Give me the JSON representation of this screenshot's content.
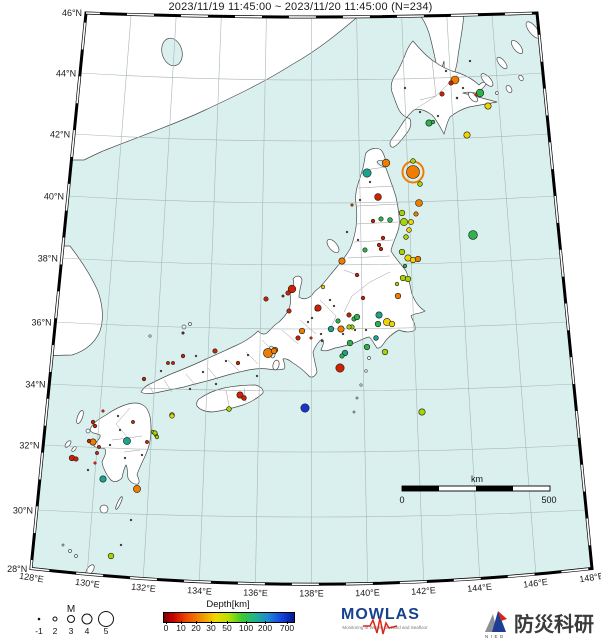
{
  "title": "2023/11/19 11:45:00 ~ 2023/11/20 11:45:00 (N=234)",
  "map": {
    "lat_labels": [
      "46°N",
      "44°N",
      "42°N",
      "40°N",
      "38°N",
      "36°N",
      "34°N",
      "32°N",
      "30°N",
      "28°N"
    ],
    "lon_labels": [
      "128°E",
      "130°E",
      "132°E",
      "134°E",
      "136°E",
      "138°E",
      "140°E",
      "142°E",
      "144°E",
      "146°E",
      "148°E"
    ],
    "scale_bar": {
      "unit": "km",
      "left": "0",
      "right": "500"
    },
    "events": [
      [
        455,
        80,
        4,
        "orange"
      ],
      [
        451,
        83,
        2.2,
        "red"
      ],
      [
        442,
        94,
        2.2,
        "red"
      ],
      [
        480,
        93,
        3.8,
        "green"
      ],
      [
        476,
        95,
        1.4,
        "red"
      ],
      [
        488,
        106,
        3.2,
        "yellow"
      ],
      [
        429,
        123,
        3.2,
        "green"
      ],
      [
        433,
        122,
        1.8,
        "green"
      ],
      [
        467,
        135,
        3.2,
        "yellow"
      ],
      [
        446,
        71,
        1,
        "tiny"
      ],
      [
        470,
        61,
        1,
        "tiny"
      ],
      [
        420,
        112,
        1,
        "tiny"
      ],
      [
        457,
        98,
        1.1,
        "tiny"
      ],
      [
        438,
        116,
        1,
        "tiny"
      ],
      [
        405,
        88,
        1,
        "tiny"
      ],
      [
        463,
        88,
        1,
        "tiny"
      ],
      [
        386,
        163,
        3.8,
        "orange"
      ],
      [
        367,
        173,
        4.2,
        "teal"
      ],
      [
        413,
        172,
        6.5,
        "orange",
        1
      ],
      [
        413,
        161,
        2.4,
        "ygreen"
      ],
      [
        420,
        184,
        2.4,
        "ygreen"
      ],
      [
        419,
        203,
        3.5,
        "orange"
      ],
      [
        378,
        197,
        3.4,
        "red"
      ],
      [
        373,
        221,
        1.8,
        "red"
      ],
      [
        381,
        219,
        2.2,
        "green"
      ],
      [
        390,
        220,
        2.4,
        "green"
      ],
      [
        402,
        213,
        2.8,
        "ygreen"
      ],
      [
        404,
        222,
        3.6,
        "ygreen"
      ],
      [
        411,
        222,
        2.6,
        "yellow"
      ],
      [
        409,
        230,
        2.4,
        "yellow"
      ],
      [
        383,
        238,
        1.8,
        "red"
      ],
      [
        406,
        237,
        2.4,
        "ygreen"
      ],
      [
        473,
        235,
        4.4,
        "green"
      ],
      [
        365,
        250,
        2.2,
        "green"
      ],
      [
        381,
        249,
        1.8,
        "red"
      ],
      [
        402,
        252,
        2.8,
        "ygreen"
      ],
      [
        408,
        258,
        3.2,
        "yellow"
      ],
      [
        413,
        260,
        2.8,
        "yellow"
      ],
      [
        418,
        259,
        2.8,
        "orange"
      ],
      [
        405,
        266,
        1.8,
        "green"
      ],
      [
        403,
        278,
        2.8,
        "ygreen"
      ],
      [
        408,
        279,
        2.8,
        "ygreen"
      ],
      [
        397,
        284,
        1.8,
        "ygreen"
      ],
      [
        416,
        214,
        2.2,
        "orange"
      ],
      [
        370,
        182,
        1,
        "tiny"
      ],
      [
        360,
        200,
        1,
        "tiny"
      ],
      [
        352,
        205,
        1.4,
        "red"
      ],
      [
        347,
        232,
        1,
        "tiny"
      ],
      [
        358,
        240,
        1,
        "tiny"
      ],
      [
        342,
        261,
        3.2,
        "orange"
      ],
      [
        357,
        275,
        1.8,
        "red"
      ],
      [
        379,
        245,
        1.8,
        "red"
      ],
      [
        292,
        289,
        3.8,
        "red"
      ],
      [
        288,
        293,
        2.2,
        "red"
      ],
      [
        266,
        299,
        2.2,
        "red"
      ],
      [
        289,
        311,
        2.2,
        "red"
      ],
      [
        323,
        287,
        1.8,
        "yellow"
      ],
      [
        317,
        309,
        2.2,
        "red"
      ],
      [
        363,
        298,
        1.8,
        "red"
      ],
      [
        331,
        329,
        2.8,
        "teal"
      ],
      [
        338,
        321,
        2.2,
        "green"
      ],
      [
        354,
        319,
        2.2,
        "green"
      ],
      [
        352,
        327,
        2.2,
        "ygreen"
      ],
      [
        311,
        338,
        1.4,
        "red"
      ],
      [
        321,
        334,
        1,
        "tiny"
      ],
      [
        334,
        306,
        1,
        "tiny"
      ],
      [
        308,
        322,
        1,
        "tiny"
      ],
      [
        398,
        296,
        2.8,
        "orange"
      ],
      [
        318,
        308,
        3.2,
        "red"
      ],
      [
        349,
        315,
        2.2,
        "red"
      ],
      [
        357,
        317,
        2.8,
        "green"
      ],
      [
        379,
        315,
        3.2,
        "teal"
      ],
      [
        378,
        324,
        2.8,
        "green"
      ],
      [
        387,
        322,
        3.6,
        "yellow"
      ],
      [
        392,
        324,
        2.8,
        "yellow"
      ],
      [
        341,
        329,
        3.2,
        "orange"
      ],
      [
        349,
        327,
        2.2,
        "ygreen"
      ],
      [
        302,
        331,
        2.8,
        "orange"
      ],
      [
        298,
        338,
        2.2,
        "red"
      ],
      [
        275,
        350,
        2.8,
        "orange"
      ],
      [
        350,
        343,
        2.8,
        "green"
      ],
      [
        367,
        347,
        2.8,
        "green"
      ],
      [
        345,
        353,
        2.8,
        "teal"
      ],
      [
        342,
        356,
        2.2,
        "green"
      ],
      [
        340,
        368,
        4.2,
        "red"
      ],
      [
        385,
        352,
        2.8,
        "ygreen"
      ],
      [
        376,
        338,
        2.4,
        "teal"
      ],
      [
        305,
        408,
        4.2,
        "blue"
      ],
      [
        422,
        412,
        3.2,
        "ygreen"
      ],
      [
        330,
        300,
        1,
        "tiny"
      ],
      [
        312,
        318,
        1,
        "tiny"
      ],
      [
        322,
        341,
        1,
        "tiny"
      ],
      [
        355,
        330,
        1,
        "tiny"
      ],
      [
        283,
        296,
        1.3,
        "tiny"
      ],
      [
        343,
        334,
        1,
        "tiny"
      ],
      [
        366,
        330,
        1,
        "tiny"
      ],
      [
        215,
        351,
        2.2,
        "red"
      ],
      [
        183,
        356,
        1.8,
        "red"
      ],
      [
        168,
        363,
        1.6,
        "red"
      ],
      [
        173,
        363,
        1.6,
        "red"
      ],
      [
        144,
        379,
        1.8,
        "red"
      ],
      [
        268,
        353,
        4.6,
        "orange"
      ],
      [
        274,
        351,
        2.8,
        "orange"
      ],
      [
        238,
        363,
        1.8,
        "red"
      ],
      [
        240,
        395,
        3.2,
        "red"
      ],
      [
        244,
        398,
        2.4,
        "red"
      ],
      [
        229,
        409,
        2.4,
        "ygreen"
      ],
      [
        172,
        415,
        2.4,
        "ygreen"
      ],
      [
        153,
        432,
        1.8,
        "ygreen"
      ],
      [
        156,
        435,
        1.8,
        "ygreen"
      ],
      [
        203,
        372,
        1,
        "tiny"
      ],
      [
        216,
        384,
        1,
        "tiny"
      ],
      [
        257,
        376,
        1,
        "tiny"
      ],
      [
        190,
        389,
        1,
        "tiny"
      ],
      [
        226,
        361,
        1,
        "tiny"
      ],
      [
        248,
        355,
        1,
        "tiny"
      ],
      [
        183,
        333,
        1.4,
        "tiny"
      ],
      [
        161,
        371,
        1,
        "tiny"
      ],
      [
        196,
        356,
        1,
        "tiny"
      ],
      [
        93,
        422,
        1.8,
        "red"
      ],
      [
        95,
        426,
        1.8,
        "red"
      ],
      [
        93,
        442,
        3.2,
        "orange"
      ],
      [
        89,
        441,
        1.8,
        "red"
      ],
      [
        72,
        458,
        2.8,
        "red"
      ],
      [
        76,
        459,
        2.2,
        "red"
      ],
      [
        99,
        447,
        1.6,
        "red"
      ],
      [
        97,
        453,
        1.6,
        "red"
      ],
      [
        95,
        463,
        1.4,
        "red"
      ],
      [
        127,
        441,
        3.6,
        "teal"
      ],
      [
        133,
        422,
        1.6,
        "red"
      ],
      [
        147,
        442,
        1.6,
        "red"
      ],
      [
        155,
        433,
        2.2,
        "ygreen"
      ],
      [
        157,
        437,
        1.8,
        "ygreen"
      ],
      [
        172,
        416,
        2.2,
        "yellow"
      ],
      [
        103,
        479,
        3.2,
        "teal"
      ],
      [
        137,
        489,
        3.6,
        "orange"
      ],
      [
        103,
        411,
        1.4,
        "red"
      ],
      [
        120,
        430,
        1,
        "tiny"
      ],
      [
        110,
        445,
        1,
        "tiny"
      ],
      [
        125,
        458,
        1,
        "tiny"
      ],
      [
        88,
        470,
        1,
        "tiny"
      ],
      [
        118,
        416,
        1,
        "tiny"
      ],
      [
        142,
        455,
        1,
        "tiny"
      ],
      [
        111,
        556,
        2.8,
        "ygreen"
      ],
      [
        121,
        545,
        1,
        "tiny"
      ],
      [
        131,
        520,
        1,
        "tiny"
      ]
    ]
  },
  "legend": {
    "magnitude": {
      "label": "M",
      "items": [
        {
          "m": "-1",
          "r": 0.8
        },
        {
          "m": "2",
          "r": 2
        },
        {
          "m": "3",
          "r": 3.5
        },
        {
          "m": "4",
          "r": 5
        },
        {
          "m": "5",
          "r": 7.5
        }
      ]
    },
    "depth": {
      "label": "Depth[km]",
      "ticks": [
        "0",
        "10",
        "20",
        "30",
        "50",
        "100",
        "200",
        "700"
      ]
    }
  },
  "colors": {
    "red": "#cf2200",
    "orange": "#f07d00",
    "yellow": "#efd400",
    "ygreen": "#a6d500",
    "green": "#2eb34a",
    "teal": "#1ba38d",
    "blue": "#1a35cc",
    "tiny": "#4a3430",
    "sea": "#d9f0ef",
    "land": "#ffffff"
  },
  "logos": {
    "mowlas": {
      "text": "MOWLAS",
      "subtext": "Monitoring of Waves on Land and Seafloor"
    },
    "nied": {
      "text": "防災科研",
      "subtext": "NIED"
    }
  }
}
